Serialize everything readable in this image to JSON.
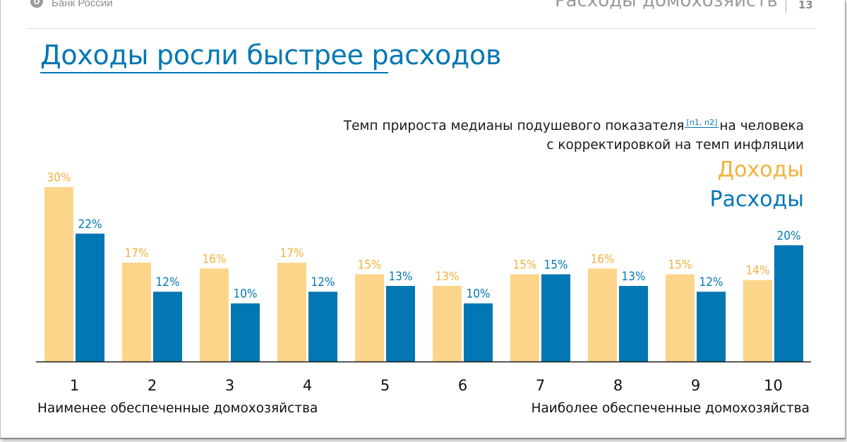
{
  "header": {
    "logo_text": "Банк России",
    "section_title": "Расходы домохозяйств",
    "page_number": "13"
  },
  "title": "Доходы росли быстрее расходов",
  "subtitle": {
    "line1_pre": "Темп прироста медианы подушевого показателя",
    "ref": "[п1, п2]",
    "line1_post": "на человека",
    "line2": "с корректировкой на темп инфляции"
  },
  "legend": {
    "income": "Доходы",
    "expenses": "Расходы"
  },
  "colors": {
    "income": "#fdd58a",
    "income_label": "#f3b13b",
    "expenses": "#0277b3",
    "title": "#0277b3"
  },
  "footer": {
    "left": "Наименее обеспеченные домохозяйства",
    "right": "Наиболее обеспеченные домохозяйства"
  },
  "chart_data": {
    "type": "bar",
    "title": "Темп прироста медианы подушевого показателя на человека с корректировкой на темп инфляции",
    "xlabel": "",
    "ylabel": "",
    "categories": [
      "1",
      "2",
      "3",
      "4",
      "5",
      "6",
      "7",
      "8",
      "9",
      "10"
    ],
    "series": [
      {
        "name": "Доходы",
        "values": [
          30,
          17,
          16,
          17,
          15,
          13,
          15,
          16,
          15,
          14
        ],
        "labels": [
          "30%",
          "17%",
          "16%",
          "17%",
          "15%",
          "13%",
          "15%",
          "16%",
          "15%",
          "14%"
        ]
      },
      {
        "name": "Расходы",
        "values": [
          22,
          12,
          10,
          12,
          13,
          10,
          15,
          13,
          12,
          20
        ],
        "labels": [
          "22%",
          "12%",
          "10%",
          "12%",
          "13%",
          "10%",
          "15%",
          "13%",
          "12%",
          "20%"
        ]
      }
    ],
    "ylim": [
      0,
      30
    ],
    "grid": false,
    "legend_position": "top-right"
  }
}
